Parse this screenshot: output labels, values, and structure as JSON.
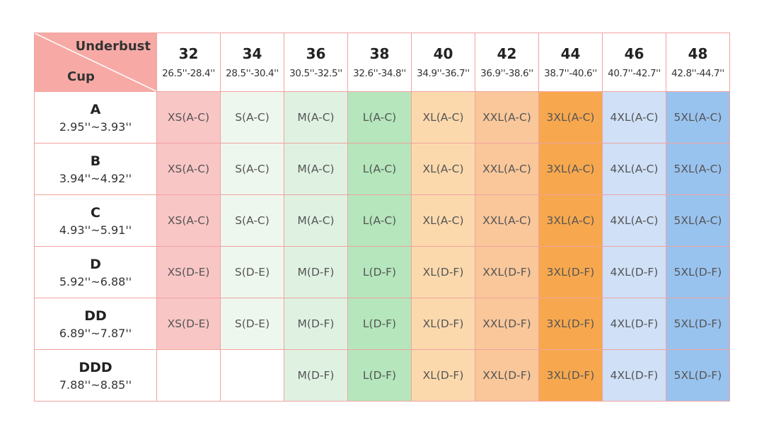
{
  "header": {
    "corner_top": "Underbust",
    "corner_bottom": "Cup",
    "columns": [
      {
        "size": "32",
        "range": "26.5''-28.4''"
      },
      {
        "size": "34",
        "range": "28.5''-30.4''"
      },
      {
        "size": "36",
        "range": "30.5''-32.5''"
      },
      {
        "size": "38",
        "range": "32.6''-34.8''"
      },
      {
        "size": "40",
        "range": "34.9''-36.7''"
      },
      {
        "size": "42",
        "range": "36.9''-38.6''"
      },
      {
        "size": "44",
        "range": "38.7''-40.6''"
      },
      {
        "size": "46",
        "range": "40.7''-42.7''"
      },
      {
        "size": "48",
        "range": "42.8''-44.7''"
      }
    ]
  },
  "rows": [
    {
      "cup": "A",
      "range": "2.95''~3.93''",
      "cells": [
        "XS(A-C)",
        "S(A-C)",
        "M(A-C)",
        "L(A-C)",
        "XL(A-C)",
        "XXL(A-C)",
        "3XL(A-C)",
        "4XL(A-C)",
        "5XL(A-C)"
      ]
    },
    {
      "cup": "B",
      "range": "3.94''~4.92''",
      "cells": [
        "XS(A-C)",
        "S(A-C)",
        "M(A-C)",
        "L(A-C)",
        "XL(A-C)",
        "XXL(A-C)",
        "3XL(A-C)",
        "4XL(A-C)",
        "5XL(A-C)"
      ]
    },
    {
      "cup": "C",
      "range": "4.93''~5.91''",
      "cells": [
        "XS(A-C)",
        "S(A-C)",
        "M(A-C)",
        "L(A-C)",
        "XL(A-C)",
        "XXL(A-C)",
        "3XL(A-C)",
        "4XL(A-C)",
        "5XL(A-C)"
      ]
    },
    {
      "cup": "D",
      "range": "5.92''~6.88''",
      "cells": [
        "XS(D-E)",
        "S(D-E)",
        "M(D-F)",
        "L(D-F)",
        "XL(D-F)",
        "XXL(D-F)",
        "3XL(D-F)",
        "4XL(D-F)",
        "5XL(D-F)"
      ]
    },
    {
      "cup": "DD",
      "range": "6.89''~7.87''",
      "cells": [
        "XS(D-E)",
        "S(D-E)",
        "M(D-F)",
        "L(D-F)",
        "XL(D-F)",
        "XXL(D-F)",
        "3XL(D-F)",
        "4XL(D-F)",
        "5XL(D-F)"
      ]
    },
    {
      "cup": "DDD",
      "range": "7.88''~8.85''",
      "cells": [
        null,
        null,
        "M(D-F)",
        "L(D-F)",
        "XL(D-F)",
        "XXL(D-F)",
        "3XL(D-F)",
        "4XL(D-F)",
        "5XL(D-F)"
      ]
    }
  ]
}
